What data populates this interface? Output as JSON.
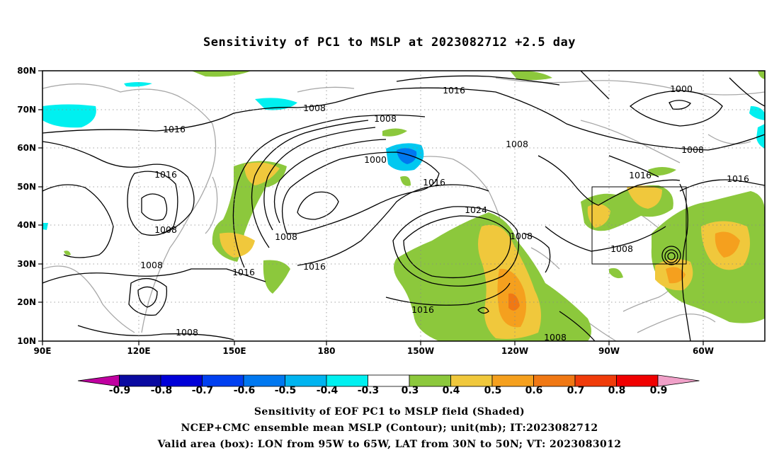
{
  "title": "Sensitivity of PC1 to MSLP at 2023082712 +2.5 day",
  "map": {
    "lat_labels": [
      "80N",
      "70N",
      "60N",
      "50N",
      "40N",
      "30N",
      "20N",
      "10N"
    ],
    "lon_labels": [
      "90E",
      "120E",
      "150E",
      "180",
      "150W",
      "120W",
      "90W",
      "60W"
    ],
    "contour_labels": [
      "1016",
      "1008",
      "1016",
      "1008",
      "1000",
      "1016",
      "1008",
      "1008",
      "1016",
      "1008",
      "1016",
      "1016",
      "1024",
      "1008",
      "1016",
      "1008",
      "1008",
      "1008",
      "1000",
      "1008",
      "1016",
      "1016",
      "1008"
    ],
    "valid_box": {
      "lon_from": "95W",
      "lon_to": "65W",
      "lat_from": "30N",
      "lat_to": "50N"
    }
  },
  "colorbar": {
    "ticks": [
      "-0.9",
      "-0.8",
      "-0.7",
      "-0.6",
      "-0.5",
      "-0.4",
      "-0.3",
      "0.3",
      "0.4",
      "0.5",
      "0.6",
      "0.7",
      "0.8",
      "0.9"
    ],
    "colors": [
      "#c000a0",
      "#0a0aa0",
      "#0000d8",
      "#0040f0",
      "#0078f0",
      "#00b4f0",
      "#00f0f0",
      "#ffffff",
      "#8cc83c",
      "#f0c83c",
      "#f5a01e",
      "#f07814",
      "#f03c0a",
      "#f00000",
      "#f0a0c8"
    ]
  },
  "captions": {
    "line1": "Sensitivity of EOF PC1 to MSLP field (Shaded)",
    "line2": "NCEP+CMC ensemble mean MSLP (Contour); unit(mb); IT:2023082712",
    "line3": "Valid area (box): LON from 95W to 65W, LAT from 30N to 50N; VT: 2023083012"
  }
}
